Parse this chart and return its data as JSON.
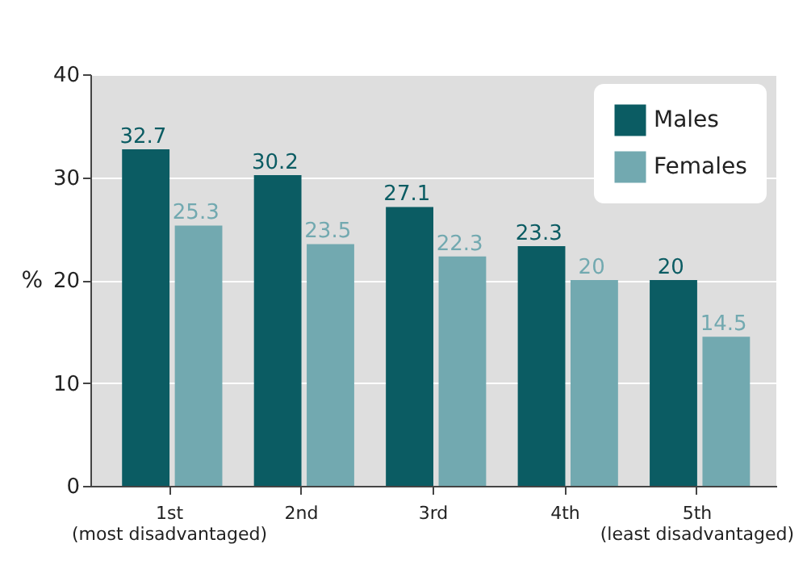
{
  "chart_data": {
    "type": "bar",
    "ylabel": "%",
    "categories": [
      "1st\n(most disadvantaged)",
      "2nd",
      "3rd",
      "4th",
      "5th\n(least disadvantaged)"
    ],
    "series": [
      {
        "name": "Males",
        "color": "#0b5c63",
        "values": [
          32.7,
          30.2,
          27.1,
          23.3,
          20
        ]
      },
      {
        "name": "Females",
        "color": "#72a9b0",
        "values": [
          25.3,
          23.5,
          22.3,
          20,
          14.5
        ]
      }
    ],
    "ylim": [
      0,
      40
    ],
    "yticks": [
      0,
      10,
      20,
      30,
      40
    ],
    "grid": "y",
    "legend": "top right",
    "data_labels": true
  }
}
